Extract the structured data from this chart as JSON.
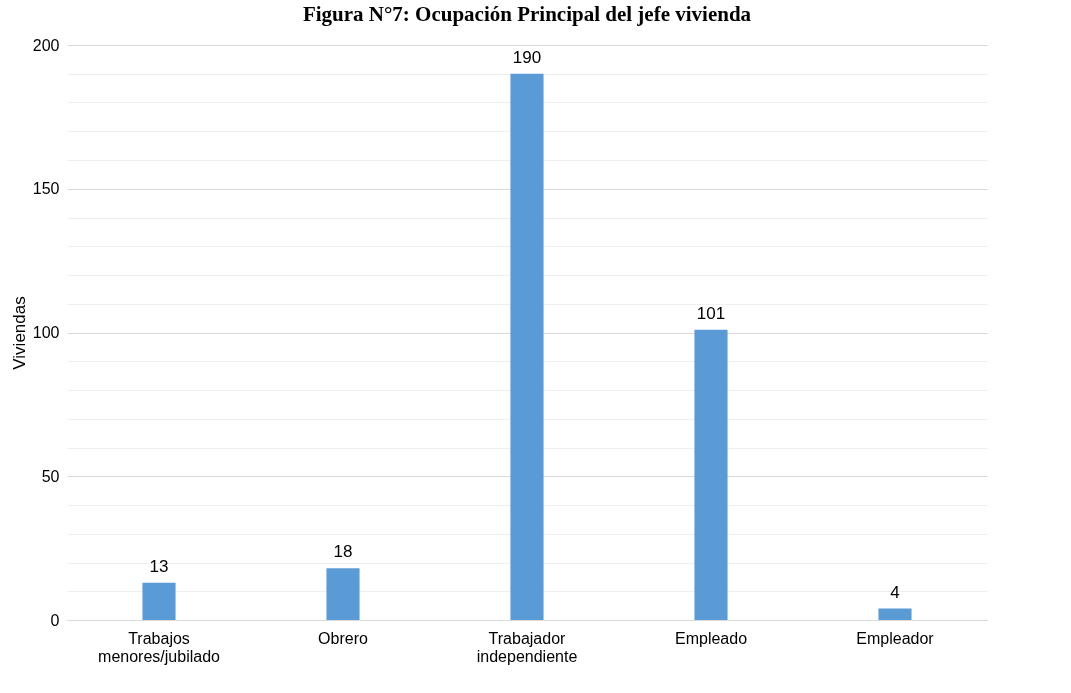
{
  "chart_data": {
    "type": "bar",
    "title": "Figura N°7: Ocupación Principal del jefe vivienda",
    "ylabel": "Viviendas",
    "categories": [
      "Trabajos\nmenores/jubilado",
      "Obrero",
      "Trabajador\nindependiente",
      "Empleado",
      "Empleador"
    ],
    "values": [
      13,
      18,
      190,
      101,
      4
    ],
    "color": "#5b9bd5",
    "data_labels": true,
    "ylim": [
      0,
      200
    ],
    "yticks": [
      0,
      {
        "value": 10,
        "label": null
      },
      {
        "value": 20,
        "label": null
      },
      {
        "value": 30,
        "label": null
      },
      {
        "value": 40,
        "label": null
      },
      50,
      {
        "value": 60,
        "label": null
      },
      {
        "value": 70,
        "label": null
      },
      {
        "value": 80,
        "label": null
      },
      {
        "value": 90,
        "label": null
      },
      100,
      {
        "value": 110,
        "label": null
      },
      {
        "value": 120,
        "label": null
      },
      {
        "value": 130,
        "label": null
      },
      {
        "value": 140,
        "label": null
      },
      150,
      {
        "value": 160,
        "label": null
      },
      {
        "value": 170,
        "label": null
      },
      {
        "value": 180,
        "label": null
      },
      {
        "value": 190,
        "label": null
      },
      200
    ],
    "grid": true
  }
}
